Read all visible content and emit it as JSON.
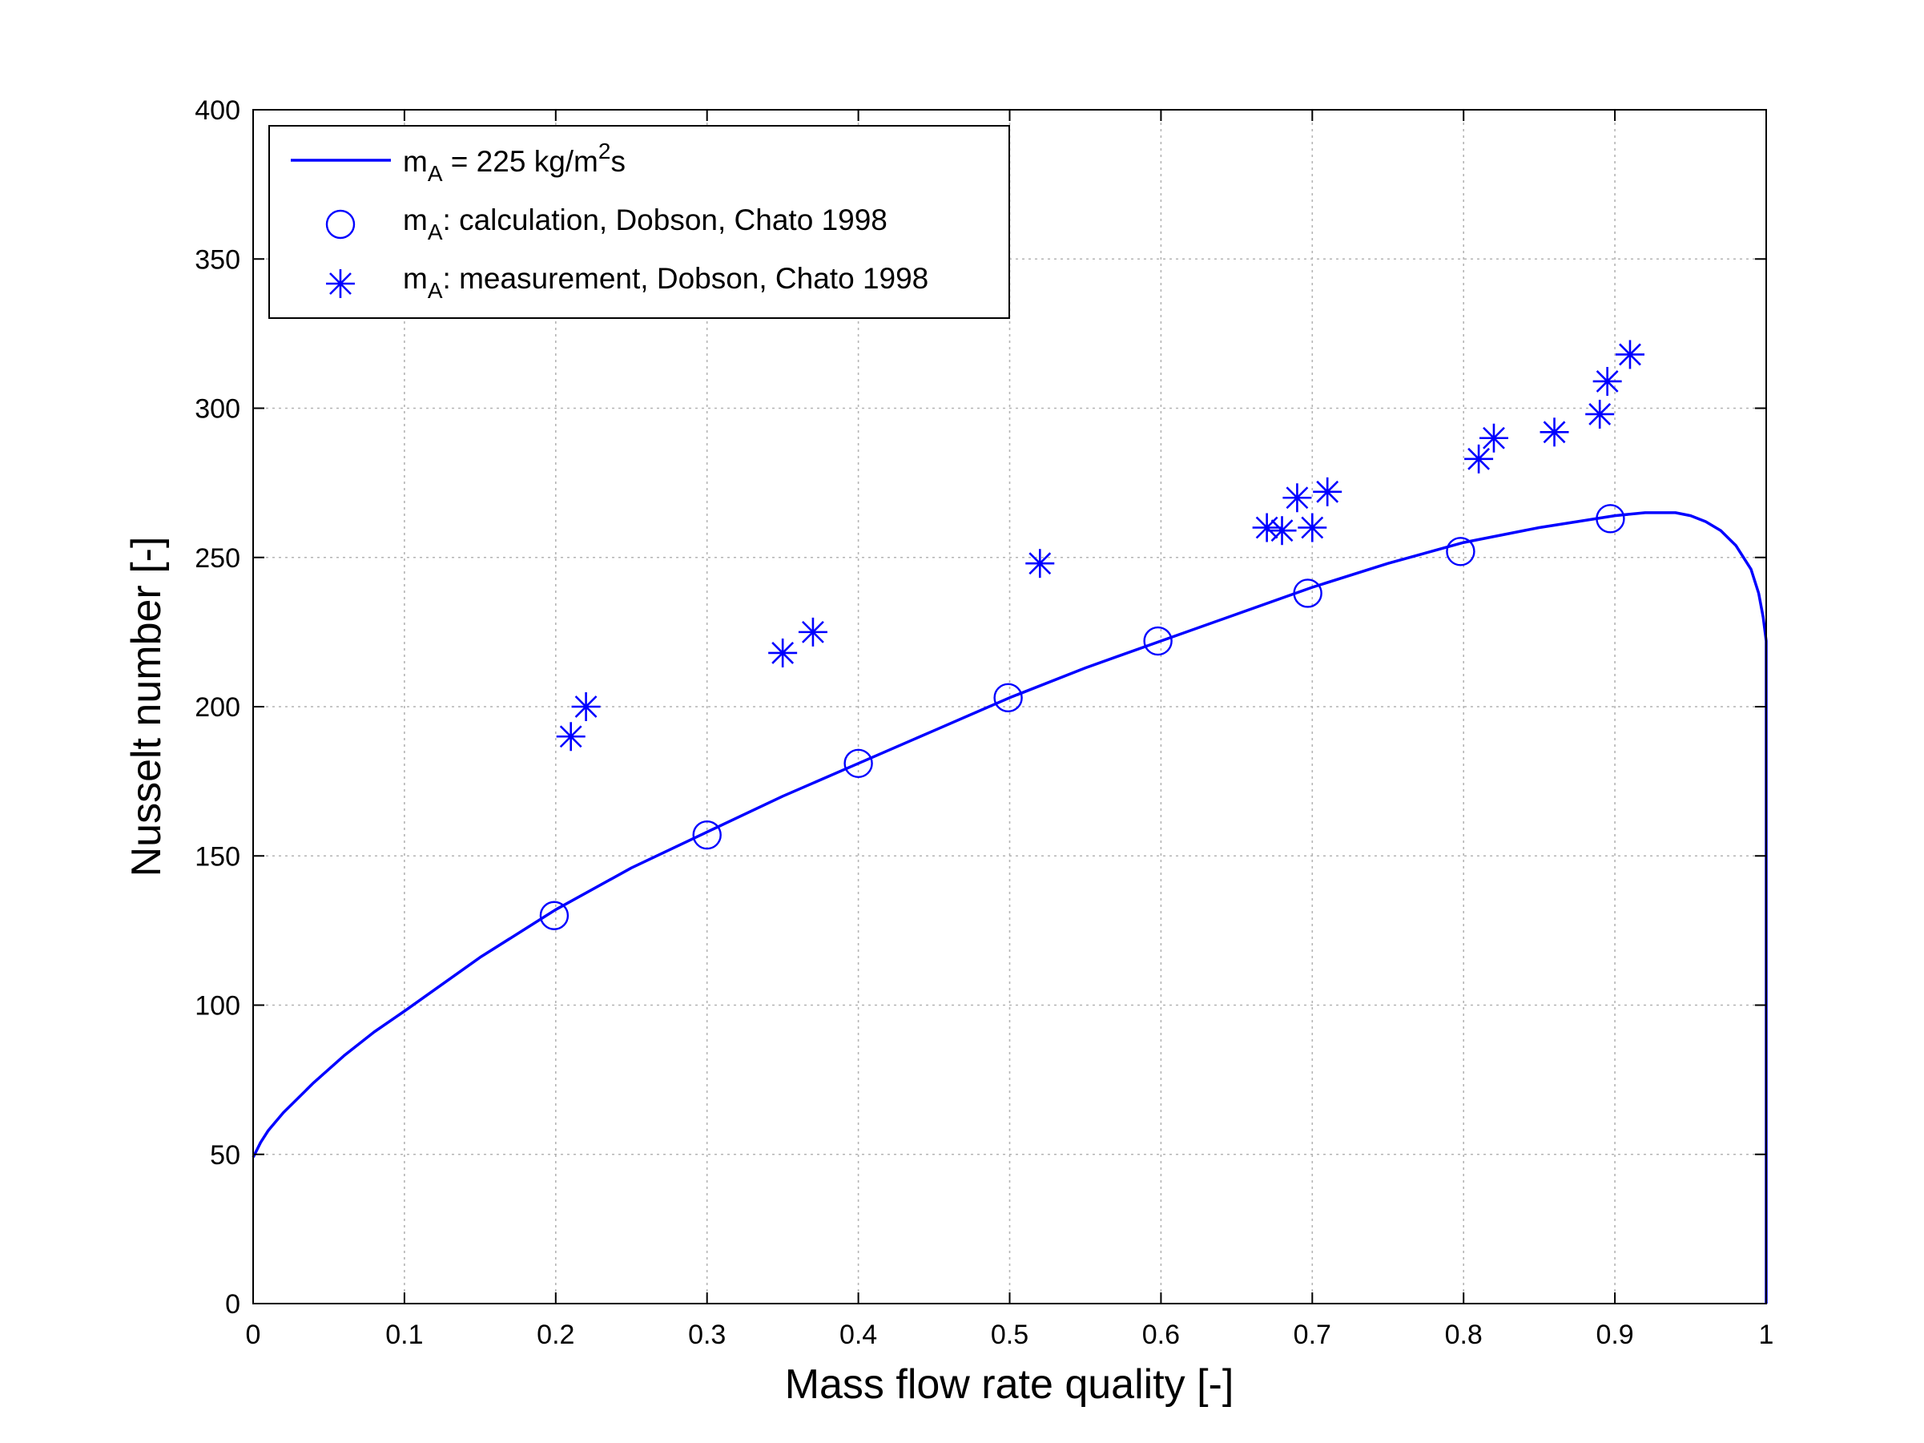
{
  "chart_data": {
    "type": "line",
    "xlabel": "Mass flow rate quality [-]",
    "ylabel": "Nusselt number [-]",
    "xlim": [
      0,
      1
    ],
    "ylim": [
      0,
      400
    ],
    "x_ticks": [
      0,
      0.1,
      0.2,
      0.3,
      0.4,
      0.5,
      0.6,
      0.7,
      0.8,
      0.9,
      1
    ],
    "x_tick_labels": [
      "0",
      "0.1",
      "0.2",
      "0.3",
      "0.4",
      "0.5",
      "0.6",
      "0.7",
      "0.8",
      "0.9",
      "1"
    ],
    "y_ticks": [
      0,
      50,
      100,
      150,
      200,
      250,
      300,
      350,
      400
    ],
    "y_tick_labels": [
      "0",
      "50",
      "100",
      "150",
      "200",
      "250",
      "300",
      "350",
      "400"
    ],
    "grid": true,
    "legend_position": "top-left",
    "color": "#0000ff",
    "series": [
      {
        "name": "m_A = 225 kg/m^2s",
        "legend_parts": [
          "m",
          "A",
          " = 225 kg/m",
          "2",
          "s"
        ],
        "style": "line",
        "x": [
          0.0,
          0.001,
          0.005,
          0.01,
          0.02,
          0.04,
          0.06,
          0.08,
          0.1,
          0.15,
          0.2,
          0.25,
          0.3,
          0.35,
          0.4,
          0.45,
          0.5,
          0.55,
          0.6,
          0.65,
          0.7,
          0.75,
          0.8,
          0.85,
          0.9,
          0.92,
          0.94,
          0.95,
          0.96,
          0.97,
          0.98,
          0.99,
          0.995,
          0.998,
          1.0,
          1.0
        ],
        "y": [
          49,
          50,
          54,
          58,
          64,
          74,
          83,
          91,
          98,
          116,
          132,
          146,
          158,
          170,
          181,
          192,
          203,
          213,
          222,
          231,
          240,
          248,
          255,
          260,
          264,
          265,
          265,
          264,
          262,
          259,
          254,
          246,
          238,
          230,
          222,
          0
        ]
      },
      {
        "name": "m_A: calculation, Dobson, Chato 1998",
        "legend_parts": [
          "m",
          "A",
          ": calculation, Dobson, Chato 1998"
        ],
        "style": "circle",
        "x": [
          0.199,
          0.3,
          0.4,
          0.499,
          0.598,
          0.697,
          0.798,
          0.897
        ],
        "y": [
          130,
          157,
          181,
          203,
          222,
          238,
          252,
          263
        ]
      },
      {
        "name": "m_A: measurement, Dobson, Chato 1998",
        "legend_parts": [
          "m",
          "A",
          ": measurement, Dobson, Chato 1998"
        ],
        "style": "asterisk",
        "x": [
          0.21,
          0.22,
          0.35,
          0.37,
          0.52,
          0.67,
          0.68,
          0.69,
          0.7,
          0.71,
          0.81,
          0.82,
          0.86,
          0.89,
          0.895,
          0.91
        ],
        "y": [
          190,
          200,
          218,
          225,
          248,
          260,
          259,
          270,
          260,
          272,
          283,
          290,
          292,
          298,
          309,
          318
        ]
      }
    ]
  }
}
